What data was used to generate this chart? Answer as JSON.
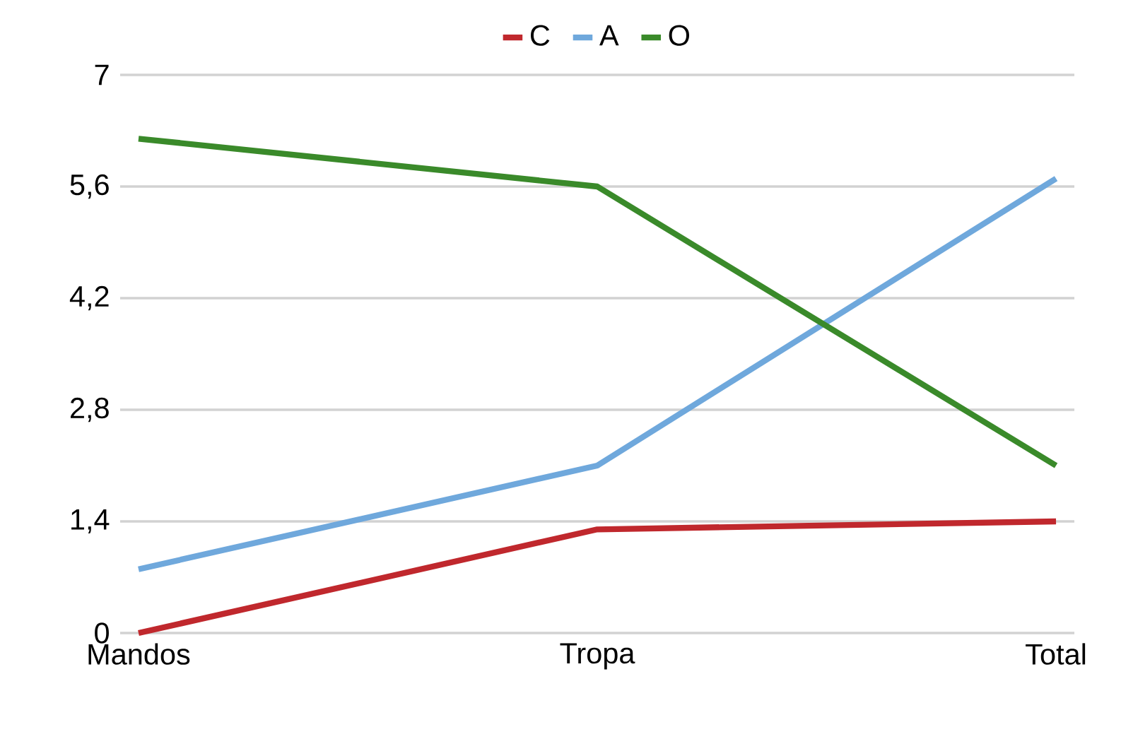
{
  "chart_data": {
    "type": "line",
    "categories": [
      "Mandos",
      "Tropa",
      "Total"
    ],
    "series": [
      {
        "name": "C",
        "color": "#c0282d",
        "values": [
          0,
          1.3,
          1.4
        ]
      },
      {
        "name": "A",
        "color": "#6fa8dc",
        "values": [
          0.8,
          2.1,
          5.7
        ]
      },
      {
        "name": "O",
        "color": "#3a8a2a",
        "values": [
          6.2,
          5.6,
          2.1
        ]
      }
    ],
    "ylim": [
      0,
      7
    ],
    "yticks": [
      {
        "value": 0,
        "label": "0"
      },
      {
        "value": 1.4,
        "label": "1,4"
      },
      {
        "value": 2.8,
        "label": "2,8"
      },
      {
        "value": 4.2,
        "label": "4,2"
      },
      {
        "value": 5.6,
        "label": "5,6"
      },
      {
        "value": 7,
        "label": "7"
      }
    ],
    "grid": "y",
    "legend": "top",
    "marker": "none",
    "line_style": "solid"
  }
}
